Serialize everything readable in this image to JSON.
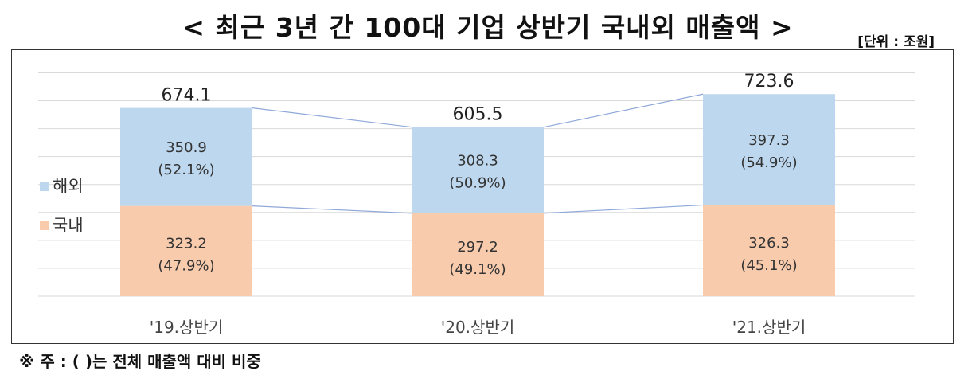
{
  "title": "< 최근 3년 간 100대 기업 상반기 국내외 매출액 >",
  "unit": "[단위 : 조원]",
  "footnote": "※ 주 : (    )는 전체 매출액 대비 비중",
  "colors": {
    "overseas": "#bdd7ee",
    "domestic": "#f8cbad",
    "grid": "#d9d9d9",
    "connector": "#8fa9d9"
  },
  "chart_data": {
    "type": "bar",
    "stacked": true,
    "categories": [
      "'19.상반기",
      "'20.상반기",
      "'21.상반기"
    ],
    "series": [
      {
        "name": "국내",
        "values": [
          323.2,
          297.2,
          326.3
        ],
        "labels": [
          "(47.9%)",
          "(49.1%)",
          "(45.1%)"
        ]
      },
      {
        "name": "해외",
        "values": [
          350.9,
          308.3,
          397.3
        ],
        "labels": [
          "(52.1%)",
          "(50.9%)",
          "(54.9%)"
        ]
      }
    ],
    "totals": [
      "674.1",
      "605.5",
      "723.6"
    ],
    "ylim": [
      0,
      800
    ],
    "grid": true,
    "legend_position": "left"
  }
}
